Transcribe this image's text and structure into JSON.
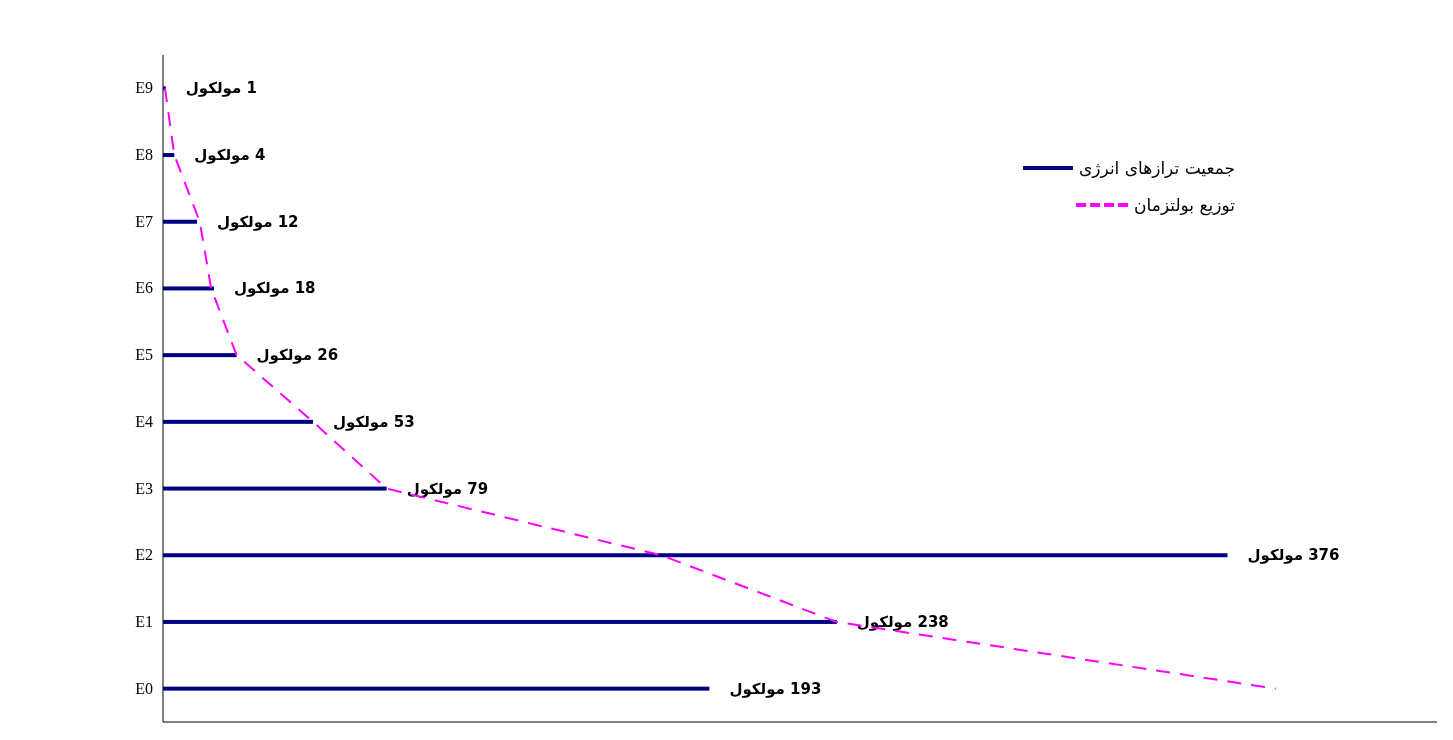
{
  "chart_data": {
    "type": "bar",
    "orientation": "horizontal",
    "categories": [
      "E9",
      "E8",
      "E7",
      "E6",
      "E5",
      "E4",
      "E3",
      "E2",
      "E1",
      "E0"
    ],
    "xlim": [
      0,
      450
    ],
    "tick_labels": "y",
    "legend": "top right",
    "series": [
      {
        "name": "جمعیت ترازهای انرژی",
        "color": "#000080",
        "values": [
          1,
          4,
          12,
          18,
          26,
          53,
          79,
          376,
          238,
          193
        ],
        "value_labels": [
          "1 مولکول",
          "4 مولکول",
          "12 مولکول",
          "18 مولکول",
          "26 مولکول",
          "53 مولکول",
          "79 مولکول",
          "376 مولکول",
          "238 مولکول",
          "193 مولکول"
        ]
      },
      {
        "name": "توزیع بولتزمان",
        "type": "line",
        "color": "#ff00ff",
        "line_style": "dashed",
        "values": [
          0.7,
          4,
          13,
          17,
          26,
          53,
          79,
          176,
          238,
          393
        ]
      }
    ]
  }
}
